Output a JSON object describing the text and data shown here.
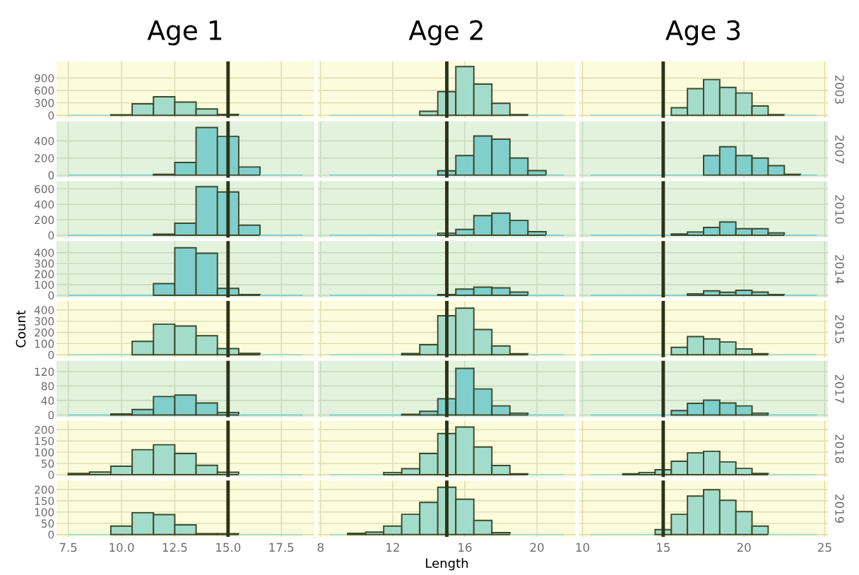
{
  "chart_data": [
    {
      "type": "histogram",
      "title": "Age 1",
      "bins": [
        7.5,
        8.5,
        9.5,
        10.5,
        11.5,
        12.5,
        13.5,
        14.5,
        15.5,
        16.5,
        17.5,
        18.5
      ],
      "values": [
        0,
        0,
        15,
        276,
        447,
        318,
        153,
        20,
        0,
        0,
        0
      ],
      "color": "#a3dccb",
      "xlim": [
        6.95,
        19.05
      ],
      "xticks": [
        7.5,
        10,
        12.5,
        15,
        17.5
      ],
      "ylim": [
        -60,
        1300
      ],
      "yticks": [
        0,
        300,
        600,
        900
      ],
      "ref_lines": [
        {
          "axis": "x",
          "value": 15,
          "color": "#2b3318"
        }
      ],
      "grid": true,
      "tick_labels": "y"
    },
    {
      "type": "histogram",
      "title": "Age 2",
      "bins": [
        8.5,
        9.5,
        10.5,
        11.5,
        12.5,
        13.5,
        14.5,
        15.5,
        16.5,
        17.5,
        18.5,
        19.5,
        20.5,
        21.5
      ],
      "values": [
        0,
        0,
        0,
        0,
        0,
        98,
        570,
        1176,
        753,
        288,
        18,
        0,
        0
      ],
      "color": "#a3dccb",
      "xlim": [
        7.85,
        22.15
      ],
      "xticks": [
        8,
        12,
        16,
        20
      ],
      "ylim": [
        -60,
        1300
      ],
      "yticks": [
        0,
        300,
        600,
        900
      ],
      "ref_lines": [
        {
          "axis": "x",
          "value": 15,
          "color": "#2b3318"
        }
      ],
      "grid": true,
      "tick_labels": false
    },
    {
      "type": "histogram",
      "title": "Age 3",
      "y2label": "2003",
      "bins": [
        10.5,
        11.5,
        12.5,
        13.5,
        14.5,
        15.5,
        16.5,
        17.5,
        18.5,
        19.5,
        20.5,
        21.5,
        22.5,
        23.5,
        24.5
      ],
      "values": [
        0,
        0,
        0,
        0,
        0,
        184,
        643,
        863,
        674,
        539,
        227,
        18,
        0,
        0
      ],
      "color": "#a3dccb",
      "xlim": [
        9.8,
        25.2
      ],
      "xticks": [
        10,
        15,
        20,
        25
      ],
      "ylim": [
        -60,
        1300
      ],
      "yticks": [
        0,
        300,
        600,
        900
      ],
      "ref_lines": [
        {
          "axis": "x",
          "value": 15,
          "color": "#2b3318"
        }
      ],
      "grid": true,
      "tick_labels": false
    },
    {
      "type": "histogram",
      "bins": [
        7.5,
        8.5,
        9.5,
        10.5,
        11.5,
        12.5,
        13.5,
        14.5,
        15.5,
        16.5,
        17.5,
        18.5
      ],
      "values": [
        0,
        0,
        0,
        0,
        9,
        148,
        557,
        453,
        95,
        0,
        0
      ],
      "color": "#80cfcc",
      "xlim": [
        6.95,
        19.05
      ],
      "xticks": [
        7.5,
        10,
        12.5,
        15,
        17.5
      ],
      "ylim": [
        -30,
        630
      ],
      "yticks": [
        0,
        200,
        400
      ],
      "ref_lines": [
        {
          "axis": "x",
          "value": 15,
          "color": "#2b3318"
        }
      ],
      "grid": true,
      "tick_labels": "y"
    },
    {
      "type": "histogram",
      "bins": [
        8.5,
        9.5,
        10.5,
        11.5,
        12.5,
        13.5,
        14.5,
        15.5,
        16.5,
        17.5,
        18.5,
        19.5,
        20.5,
        21.5
      ],
      "values": [
        0,
        0,
        0,
        0,
        0,
        0,
        50,
        228,
        459,
        421,
        199,
        53,
        0
      ],
      "color": "#80cfcc",
      "xlim": [
        7.85,
        22.15
      ],
      "xticks": [
        8,
        12,
        16,
        20
      ],
      "ylim": [
        -30,
        630
      ],
      "yticks": [
        0,
        200,
        400
      ],
      "ref_lines": [
        {
          "axis": "x",
          "value": 15,
          "color": "#2b3318"
        }
      ],
      "grid": true,
      "tick_labels": false
    },
    {
      "type": "histogram",
      "y2label": "2007",
      "bins": [
        10.5,
        11.5,
        12.5,
        13.5,
        14.5,
        15.5,
        16.5,
        17.5,
        18.5,
        19.5,
        20.5,
        21.5,
        22.5,
        23.5,
        24.5
      ],
      "values": [
        0,
        0,
        0,
        0,
        0,
        0,
        0,
        228,
        332,
        228,
        199,
        110,
        9,
        0
      ],
      "color": "#80cfcc",
      "xlim": [
        9.8,
        25.2
      ],
      "xticks": [
        10,
        15,
        20,
        25
      ],
      "ylim": [
        -30,
        630
      ],
      "yticks": [
        0,
        200,
        400
      ],
      "ref_lines": [
        {
          "axis": "x",
          "value": 15,
          "color": "#2b3318"
        }
      ],
      "grid": true,
      "tick_labels": false
    },
    {
      "type": "histogram",
      "bins": [
        7.5,
        8.5,
        9.5,
        10.5,
        11.5,
        12.5,
        13.5,
        14.5,
        15.5,
        16.5,
        17.5,
        18.5
      ],
      "values": [
        0,
        0,
        0,
        0,
        13,
        156,
        629,
        561,
        130,
        0,
        0
      ],
      "color": "#80cfcc",
      "xlim": [
        6.95,
        19.05
      ],
      "xticks": [
        7.5,
        10,
        12.5,
        15,
        17.5
      ],
      "ylim": [
        -30,
        700
      ],
      "yticks": [
        0,
        200,
        400,
        600
      ],
      "ref_lines": [
        {
          "axis": "x",
          "value": 15,
          "color": "#2b3318"
        }
      ],
      "grid": true,
      "tick_labels": "y"
    },
    {
      "type": "histogram",
      "bins": [
        8.5,
        9.5,
        10.5,
        11.5,
        12.5,
        13.5,
        14.5,
        15.5,
        16.5,
        17.5,
        18.5,
        19.5,
        20.5,
        21.5
      ],
      "values": [
        0,
        0,
        0,
        0,
        0,
        0,
        26,
        75,
        253,
        285,
        191,
        45,
        0
      ],
      "color": "#80cfcc",
      "xlim": [
        7.85,
        22.15
      ],
      "xticks": [
        8,
        12,
        16,
        20
      ],
      "ylim": [
        -30,
        700
      ],
      "yticks": [
        0,
        200,
        400,
        600
      ],
      "ref_lines": [
        {
          "axis": "x",
          "value": 15,
          "color": "#2b3318"
        }
      ],
      "grid": true,
      "tick_labels": false
    },
    {
      "type": "histogram",
      "y2label": "2010",
      "bins": [
        10.5,
        11.5,
        12.5,
        13.5,
        14.5,
        15.5,
        16.5,
        17.5,
        18.5,
        19.5,
        20.5,
        21.5,
        22.5,
        23.5,
        24.5
      ],
      "values": [
        0,
        0,
        0,
        0,
        0,
        16,
        42,
        100,
        172,
        84,
        84,
        29,
        0,
        0
      ],
      "color": "#80cfcc",
      "xlim": [
        9.8,
        25.2
      ],
      "xticks": [
        10,
        15,
        20,
        25
      ],
      "ylim": [
        -30,
        700
      ],
      "yticks": [
        0,
        200,
        400,
        600
      ],
      "ref_lines": [
        {
          "axis": "x",
          "value": 15,
          "color": "#2b3318"
        }
      ],
      "grid": true,
      "tick_labels": false
    },
    {
      "type": "histogram",
      "bins": [
        7.5,
        8.5,
        9.5,
        10.5,
        11.5,
        12.5,
        13.5,
        14.5,
        15.5,
        16.5,
        17.5,
        18.5
      ],
      "values": [
        0,
        0,
        0,
        0,
        109,
        447,
        395,
        65,
        7,
        0,
        0
      ],
      "color": "#80cfcc",
      "xlim": [
        6.95,
        19.05
      ],
      "xticks": [
        7.5,
        10,
        12.5,
        15,
        17.5
      ],
      "ylim": [
        -20,
        510
      ],
      "yticks": [
        0,
        100,
        200,
        300,
        400
      ],
      "ref_lines": [
        {
          "axis": "x",
          "value": 15,
          "color": "#2b3318"
        }
      ],
      "grid": true,
      "tick_labels": "y"
    },
    {
      "type": "histogram",
      "bins": [
        8.5,
        9.5,
        10.5,
        11.5,
        12.5,
        13.5,
        14.5,
        15.5,
        16.5,
        17.5,
        18.5,
        19.5,
        20.5,
        21.5
      ],
      "values": [
        0,
        0,
        0,
        0,
        0,
        0,
        7,
        58,
        77,
        70,
        30,
        0,
        0
      ],
      "color": "#80cfcc",
      "xlim": [
        7.85,
        22.15
      ],
      "xticks": [
        8,
        12,
        16,
        20
      ],
      "ylim": [
        -20,
        510
      ],
      "yticks": [
        0,
        100,
        200,
        300,
        400
      ],
      "ref_lines": [
        {
          "axis": "x",
          "value": 15,
          "color": "#2b3318"
        }
      ],
      "grid": true,
      "tick_labels": false
    },
    {
      "type": "histogram",
      "y2label": "2014",
      "bins": [
        10.5,
        11.5,
        12.5,
        13.5,
        14.5,
        15.5,
        16.5,
        17.5,
        18.5,
        19.5,
        20.5,
        21.5,
        22.5,
        23.5,
        24.5
      ],
      "values": [
        0,
        0,
        0,
        0,
        0,
        0,
        14,
        42,
        28,
        47,
        30,
        7,
        0,
        0
      ],
      "color": "#80cfcc",
      "xlim": [
        9.8,
        25.2
      ],
      "xticks": [
        10,
        15,
        20,
        25
      ],
      "ylim": [
        -20,
        510
      ],
      "yticks": [
        0,
        100,
        200,
        300,
        400
      ],
      "ref_lines": [
        {
          "axis": "x",
          "value": 15,
          "color": "#2b3318"
        }
      ],
      "grid": true,
      "tick_labels": false
    },
    {
      "type": "histogram",
      "ylabel": "Count",
      "bins": [
        7.5,
        8.5,
        9.5,
        10.5,
        11.5,
        12.5,
        13.5,
        14.5,
        15.5,
        16.5,
        17.5,
        18.5
      ],
      "values": [
        0,
        0,
        0,
        120,
        273,
        256,
        170,
        55,
        13,
        0,
        0
      ],
      "color": "#a3dccb",
      "xlim": [
        6.95,
        19.05
      ],
      "xticks": [
        7.5,
        10,
        12.5,
        15,
        17.5
      ],
      "ylim": [
        -22,
        480
      ],
      "yticks": [
        0,
        100,
        200,
        300,
        400
      ],
      "ref_lines": [
        {
          "axis": "x",
          "value": 15,
          "color": "#2b3318"
        }
      ],
      "grid": true,
      "tick_labels": "y"
    },
    {
      "type": "histogram",
      "bins": [
        8.5,
        9.5,
        10.5,
        11.5,
        12.5,
        13.5,
        14.5,
        15.5,
        16.5,
        17.5,
        18.5,
        19.5,
        20.5,
        21.5
      ],
      "values": [
        0,
        0,
        0,
        0,
        11,
        90,
        348,
        415,
        225,
        79,
        9,
        0,
        0
      ],
      "color": "#a3dccb",
      "xlim": [
        7.85,
        22.15
      ],
      "xticks": [
        8,
        12,
        16,
        20
      ],
      "ylim": [
        -22,
        480
      ],
      "yticks": [
        0,
        100,
        200,
        300,
        400
      ],
      "ref_lines": [
        {
          "axis": "x",
          "value": 15,
          "color": "#2b3318"
        }
      ],
      "grid": true,
      "tick_labels": false
    },
    {
      "type": "histogram",
      "y2label": "2015",
      "bins": [
        10.5,
        11.5,
        12.5,
        13.5,
        14.5,
        15.5,
        16.5,
        17.5,
        18.5,
        19.5,
        20.5,
        21.5,
        22.5,
        23.5,
        24.5
      ],
      "values": [
        0,
        0,
        0,
        0,
        0,
        66,
        162,
        142,
        114,
        52,
        9,
        0,
        0,
        0
      ],
      "color": "#a3dccb",
      "xlim": [
        9.8,
        25.2
      ],
      "xticks": [
        10,
        15,
        20,
        25
      ],
      "ylim": [
        -22,
        480
      ],
      "yticks": [
        0,
        100,
        200,
        300,
        400
      ],
      "ref_lines": [
        {
          "axis": "x",
          "value": 15,
          "color": "#2b3318"
        }
      ],
      "grid": true,
      "tick_labels": false
    },
    {
      "type": "histogram",
      "bins": [
        7.5,
        8.5,
        9.5,
        10.5,
        11.5,
        12.5,
        13.5,
        14.5,
        15.5,
        16.5,
        17.5,
        18.5
      ],
      "values": [
        0,
        0,
        3,
        15,
        51,
        55,
        33,
        7,
        0,
        0,
        0
      ],
      "color": "#80cfcc",
      "xlim": [
        6.95,
        19.05
      ],
      "xticks": [
        7.5,
        10,
        12.5,
        15,
        17.5
      ],
      "ylim": [
        -6,
        150
      ],
      "yticks": [
        0,
        40,
        80,
        120
      ],
      "ref_lines": [
        {
          "axis": "x",
          "value": 15,
          "color": "#2b3318"
        }
      ],
      "grid": true,
      "tick_labels": "y"
    },
    {
      "type": "histogram",
      "bins": [
        8.5,
        9.5,
        10.5,
        11.5,
        12.5,
        13.5,
        14.5,
        15.5,
        16.5,
        17.5,
        18.5,
        19.5,
        20.5,
        21.5
      ],
      "values": [
        0,
        0,
        0,
        0,
        2,
        10,
        45,
        129,
        72,
        25,
        5,
        0,
        0
      ],
      "color": "#80cfcc",
      "xlim": [
        7.85,
        22.15
      ],
      "xticks": [
        8,
        12,
        16,
        20
      ],
      "ylim": [
        -6,
        150
      ],
      "yticks": [
        0,
        40,
        80,
        120
      ],
      "ref_lines": [
        {
          "axis": "x",
          "value": 15,
          "color": "#2b3318"
        }
      ],
      "grid": true,
      "tick_labels": false
    },
    {
      "type": "histogram",
      "y2label": "2017",
      "bins": [
        10.5,
        11.5,
        12.5,
        13.5,
        14.5,
        15.5,
        16.5,
        17.5,
        18.5,
        19.5,
        20.5,
        21.5,
        22.5,
        23.5,
        24.5
      ],
      "values": [
        0,
        0,
        0,
        0,
        0,
        12,
        32,
        41,
        33,
        25,
        5,
        0,
        0,
        0
      ],
      "color": "#80cfcc",
      "xlim": [
        9.8,
        25.2
      ],
      "xticks": [
        10,
        15,
        20,
        25
      ],
      "ylim": [
        -6,
        150
      ],
      "yticks": [
        0,
        40,
        80,
        120
      ],
      "ref_lines": [
        {
          "axis": "x",
          "value": 15,
          "color": "#2b3318"
        }
      ],
      "grid": true,
      "tick_labels": false
    },
    {
      "type": "histogram",
      "bins": [
        7.5,
        8.5,
        9.5,
        10.5,
        11.5,
        12.5,
        13.5,
        14.5,
        15.5,
        16.5,
        17.5,
        18.5
      ],
      "values": [
        6,
        12,
        38,
        111,
        133,
        94,
        42,
        11,
        0,
        0,
        0
      ],
      "color": "#a3dccb",
      "xlim": [
        6.95,
        19.05
      ],
      "xticks": [
        7.5,
        10,
        12.5,
        15,
        17.5
      ],
      "ylim": [
        -10,
        240
      ],
      "yticks": [
        0,
        50,
        100,
        150,
        200
      ],
      "ref_lines": [
        {
          "axis": "x",
          "value": 15,
          "color": "#2b3318"
        }
      ],
      "grid": true,
      "tick_labels": "y"
    },
    {
      "type": "histogram",
      "bins": [
        8.5,
        9.5,
        10.5,
        11.5,
        12.5,
        13.5,
        14.5,
        15.5,
        16.5,
        17.5,
        18.5,
        19.5,
        20.5,
        21.5
      ],
      "values": [
        0,
        0,
        0,
        10,
        27,
        94,
        183,
        212,
        123,
        41,
        4,
        0,
        0
      ],
      "color": "#a3dccb",
      "xlim": [
        7.85,
        22.15
      ],
      "xticks": [
        8,
        12,
        16,
        20
      ],
      "ylim": [
        -10,
        240
      ],
      "yticks": [
        0,
        50,
        100,
        150,
        200
      ],
      "ref_lines": [
        {
          "axis": "x",
          "value": 15,
          "color": "#2b3318"
        }
      ],
      "grid": true,
      "tick_labels": false
    },
    {
      "type": "histogram",
      "y2label": "2018",
      "bins": [
        10.5,
        11.5,
        12.5,
        13.5,
        14.5,
        15.5,
        16.5,
        17.5,
        18.5,
        19.5,
        20.5,
        21.5,
        22.5,
        23.5,
        24.5
      ],
      "values": [
        0,
        0,
        4,
        10,
        22,
        60,
        97,
        104,
        57,
        28,
        6,
        0,
        0,
        0
      ],
      "color": "#a3dccb",
      "xlim": [
        9.8,
        25.2
      ],
      "xticks": [
        10,
        15,
        20,
        25
      ],
      "ylim": [
        -10,
        240
      ],
      "yticks": [
        0,
        50,
        100,
        150,
        200
      ],
      "ref_lines": [
        {
          "axis": "x",
          "value": 15,
          "color": "#2b3318"
        }
      ],
      "grid": true,
      "tick_labels": false
    },
    {
      "type": "histogram",
      "bins": [
        7.5,
        8.5,
        9.5,
        10.5,
        11.5,
        12.5,
        13.5,
        14.5,
        15.5,
        16.5,
        17.5,
        18.5
      ],
      "values": [
        0,
        0,
        38,
        97,
        89,
        43,
        4,
        4,
        0,
        0,
        0
      ],
      "color": "#a3dccb",
      "xlim": [
        6.95,
        19.05
      ],
      "xticks": [
        7.5,
        {
          "value": 10,
          "label": "10.0"
        },
        12.5,
        {
          "value": 15,
          "label": "15.0"
        },
        17.5
      ],
      "ylim": [
        -10,
        240
      ],
      "yticks": [
        0,
        50,
        100,
        150,
        200
      ],
      "ref_lines": [
        {
          "axis": "x",
          "value": 15,
          "color": "#2b3318"
        }
      ],
      "grid": true
    },
    {
      "type": "histogram",
      "xlabel": "Length",
      "bins": [
        8.5,
        9.5,
        10.5,
        11.5,
        12.5,
        13.5,
        14.5,
        15.5,
        16.5,
        17.5,
        18.5,
        19.5,
        20.5,
        21.5
      ],
      "values": [
        0,
        6,
        11,
        38,
        90,
        143,
        210,
        157,
        63,
        9,
        0,
        0,
        0
      ],
      "color": "#a3dccb",
      "xlim": [
        7.85,
        22.15
      ],
      "xticks": [
        8,
        12,
        16,
        20
      ],
      "ylim": [
        -10,
        240
      ],
      "yticks": [
        0,
        50,
        100,
        150,
        200
      ],
      "ref_lines": [
        {
          "axis": "x",
          "value": 15,
          "color": "#2b3318"
        }
      ],
      "grid": true,
      "tick_labels": "x"
    },
    {
      "type": "histogram",
      "y2label": "2019",
      "bins": [
        10.5,
        11.5,
        12.5,
        13.5,
        14.5,
        15.5,
        16.5,
        17.5,
        18.5,
        19.5,
        20.5,
        21.5,
        22.5,
        23.5,
        24.5
      ],
      "values": [
        0,
        0,
        0,
        0,
        22,
        90,
        171,
        199,
        152,
        102,
        38,
        0,
        0,
        0
      ],
      "color": "#a3dccb",
      "xlim": [
        9.8,
        25.2
      ],
      "xticks": [
        10,
        15,
        20,
        25
      ],
      "ylim": [
        -10,
        240
      ],
      "yticks": [
        0,
        50,
        100,
        150,
        200
      ],
      "ref_lines": [
        {
          "axis": "x",
          "value": 15,
          "color": "#2b3318"
        }
      ],
      "grid": true,
      "tick_labels": "x"
    }
  ]
}
